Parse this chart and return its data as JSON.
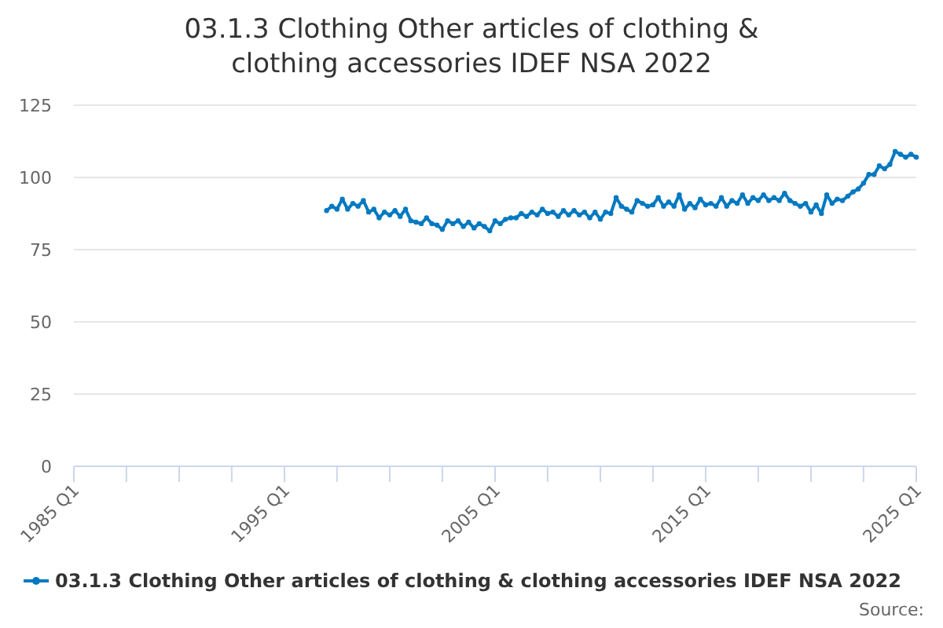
{
  "chart_data": {
    "type": "line",
    "title": "03.1.3 Clothing Other articles of clothing & clothing accessories IDEF NSA 2022",
    "x": [
      "1997-01",
      "1997-04",
      "1997-07",
      "1997-10",
      "1998-01",
      "1998-04",
      "1998-07",
      "1998-10",
      "1999-01",
      "1999-04",
      "1999-07",
      "1999-10",
      "2000-01",
      "2000-04",
      "2000-07",
      "2000-10",
      "2001-01",
      "2001-04",
      "2001-07",
      "2001-10",
      "2002-01",
      "2002-04",
      "2002-07",
      "2002-10",
      "2003-01",
      "2003-04",
      "2003-07",
      "2003-10",
      "2004-01",
      "2004-04",
      "2004-07",
      "2004-10",
      "2005-01",
      "2005-04",
      "2005-07",
      "2005-10",
      "2006-01",
      "2006-04",
      "2006-07",
      "2006-10",
      "2007-01",
      "2007-04",
      "2007-07",
      "2007-10",
      "2008-01",
      "2008-04",
      "2008-07",
      "2008-10",
      "2009-01",
      "2009-04",
      "2009-07",
      "2009-10",
      "2010-01",
      "2010-04",
      "2010-07",
      "2010-10",
      "2011-01",
      "2011-04",
      "2011-07",
      "2011-10",
      "2012-01",
      "2012-04",
      "2012-07",
      "2012-10",
      "2013-01",
      "2013-04",
      "2013-07",
      "2013-10",
      "2014-01",
      "2014-04",
      "2014-07",
      "2014-10",
      "2015-01",
      "2015-04",
      "2015-07",
      "2015-10",
      "2016-01",
      "2016-04",
      "2016-07",
      "2016-10",
      "2017-01",
      "2017-04",
      "2017-07",
      "2017-10",
      "2018-01",
      "2018-04",
      "2018-07",
      "2018-10",
      "2019-01",
      "2019-04",
      "2019-07",
      "2019-10",
      "2020-01",
      "2020-04",
      "2020-07",
      "2020-10",
      "2021-01",
      "2021-04",
      "2021-07",
      "2021-10",
      "2022-01",
      "2022-04",
      "2022-07",
      "2022-10",
      "2023-01",
      "2023-04",
      "2023-07",
      "2023-10",
      "2024-01",
      "2024-04",
      "2024-07",
      "2024-10",
      "2025-01"
    ],
    "series": [
      {
        "name": "03.1.3 Clothing Other articles of clothing & clothing accessories IDEF NSA 2022",
        "color": "#0079c1",
        "values": [
          88.5,
          90,
          89,
          92.5,
          89,
          91,
          90,
          92,
          88,
          89,
          86,
          88,
          87,
          88.5,
          86.5,
          89,
          85,
          84.5,
          84,
          86,
          84,
          83.5,
          82,
          85,
          84,
          85,
          83,
          84.5,
          82.5,
          84,
          83,
          81.5,
          85,
          84,
          85.5,
          86,
          86,
          87.5,
          86.5,
          88,
          87,
          89,
          87.5,
          88,
          86.5,
          88.5,
          87,
          88.5,
          87,
          88,
          86,
          88,
          85.5,
          88,
          87.5,
          93,
          90,
          89,
          88,
          92,
          91,
          90,
          90.5,
          93,
          90,
          91.5,
          90,
          94,
          89,
          91,
          89.5,
          92.5,
          90.5,
          91,
          90,
          93,
          90,
          92,
          91,
          94,
          91,
          93,
          92,
          94,
          92,
          93,
          92,
          94.5,
          92,
          91,
          90,
          91,
          88,
          90.5,
          87.5,
          94,
          91,
          92.5,
          92,
          93.5,
          95,
          96,
          98,
          101,
          101,
          104,
          103,
          104.5,
          109,
          108,
          107,
          108,
          107
        ]
      }
    ],
    "xlim": [
      "1985-01",
      "2025-01"
    ],
    "xticks": [
      {
        "value": "1985-01",
        "label": "1985 Q1"
      },
      {
        "value": "1987-07",
        "label": null
      },
      {
        "value": "1990-01",
        "label": null
      },
      {
        "value": "1992-07",
        "label": null
      },
      {
        "value": "1995-01",
        "label": "1995 Q1"
      },
      {
        "value": "1997-07",
        "label": null
      },
      {
        "value": "2000-01",
        "label": null
      },
      {
        "value": "2002-07",
        "label": null
      },
      {
        "value": "2005-01",
        "label": "2005 Q1"
      },
      {
        "value": "2007-07",
        "label": null
      },
      {
        "value": "2010-01",
        "label": null
      },
      {
        "value": "2012-07",
        "label": null
      },
      {
        "value": "2015-01",
        "label": "2015 Q1"
      },
      {
        "value": "2017-07",
        "label": null
      },
      {
        "value": "2020-01",
        "label": null
      },
      {
        "value": "2022-07",
        "label": null
      },
      {
        "value": "2025-01",
        "label": "2025 Q1"
      }
    ],
    "ylim": [
      0,
      125
    ],
    "yticks": [
      0,
      25,
      50,
      75,
      100,
      125
    ],
    "grid": "y",
    "legend": "bottom",
    "marker": "circle",
    "line_style": "solid",
    "annotations": [
      "Source:"
    ]
  }
}
